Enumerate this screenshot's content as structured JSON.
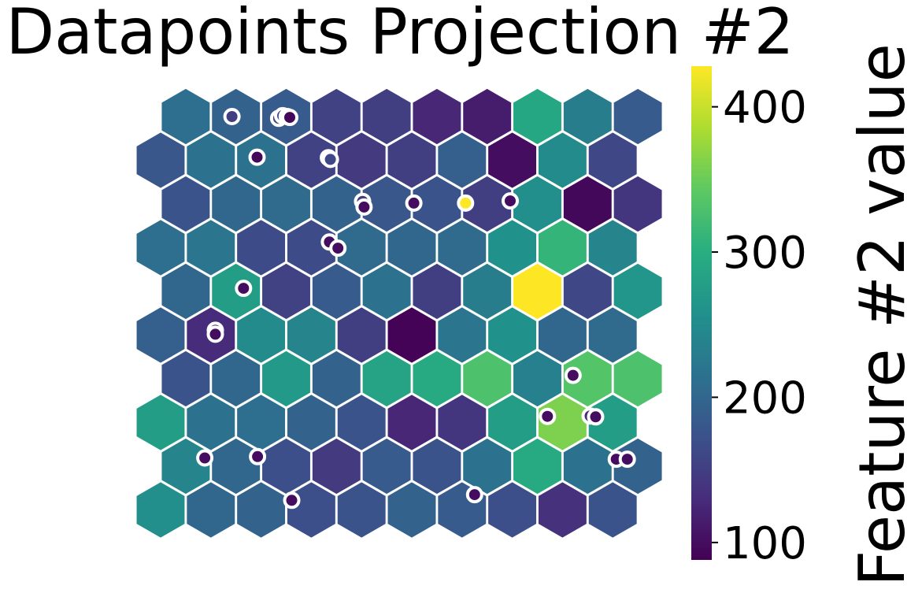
{
  "chart_data": {
    "type": "heatmap",
    "subtype": "hexagonal-som",
    "title": "Datapoints Projection #2",
    "colorbar": {
      "label": "Feature #2 value",
      "min": 88,
      "max": 428,
      "ticks": [
        100,
        200,
        300,
        400
      ],
      "colormap": "viridis"
    },
    "grid": {
      "rows": 10,
      "cols": 10,
      "odd_row_offset": "right"
    },
    "hex_values": [
      [
        210,
        195,
        185,
        155,
        150,
        125,
        115,
        290,
        230,
        185
      ],
      [
        180,
        215,
        215,
        155,
        145,
        150,
        190,
        100,
        250,
        160
      ],
      [
        175,
        200,
        205,
        195,
        180,
        175,
        150,
        255,
        95,
        140
      ],
      [
        210,
        220,
        165,
        165,
        205,
        200,
        205,
        260,
        310,
        240
      ],
      [
        200,
        275,
        155,
        185,
        215,
        150,
        230,
        428,
        160,
        265
      ],
      [
        190,
        130,
        250,
        240,
        150,
        90,
        220,
        260,
        200,
        205
      ],
      [
        175,
        200,
        270,
        195,
        285,
        295,
        330,
        235,
        335,
        330
      ],
      [
        275,
        215,
        210,
        195,
        175,
        125,
        140,
        275,
        360,
        275
      ],
      [
        240,
        200,
        170,
        145,
        185,
        175,
        215,
        295,
        215,
        195
      ],
      [
        255,
        200,
        195,
        170,
        175,
        195,
        185,
        170,
        135,
        175
      ]
    ],
    "points": [
      {
        "x": 1.42,
        "y": 0.0,
        "value": 150
      },
      {
        "x": 2.35,
        "y": 0.04,
        "value": 160
      },
      {
        "x": 2.43,
        "y": -0.02,
        "value": 170
      },
      {
        "x": 2.52,
        "y": 0.0,
        "value": 100
      },
      {
        "x": 2.57,
        "y": 0.02,
        "value": 95
      },
      {
        "x": 1.92,
        "y": 0.93,
        "value": 95
      },
      {
        "x": 3.34,
        "y": 0.94,
        "value": 100
      },
      {
        "x": 3.38,
        "y": 0.98,
        "value": 160
      },
      {
        "x": 4.02,
        "y": 1.94,
        "value": 150
      },
      {
        "x": 4.05,
        "y": 2.07,
        "value": 100
      },
      {
        "x": 5.04,
        "y": 1.98,
        "value": 100
      },
      {
        "x": 6.07,
        "y": 1.98,
        "value": 428
      },
      {
        "x": 6.96,
        "y": 1.93,
        "value": 100
      },
      {
        "x": 3.36,
        "y": 2.87,
        "value": 100
      },
      {
        "x": 3.53,
        "y": 3.01,
        "value": 100
      },
      {
        "x": 1.65,
        "y": 3.93,
        "value": 100
      },
      {
        "x": 1.09,
        "y": 4.89,
        "value": 120
      },
      {
        "x": 1.09,
        "y": 4.98,
        "value": 100
      },
      {
        "x": 8.21,
        "y": 5.92,
        "value": 100
      },
      {
        "x": 7.7,
        "y": 6.86,
        "value": 100
      },
      {
        "x": 8.55,
        "y": 6.85,
        "value": 130
      },
      {
        "x": 8.66,
        "y": 6.87,
        "value": 100
      },
      {
        "x": 0.88,
        "y": 7.81,
        "value": 100
      },
      {
        "x": 1.93,
        "y": 7.78,
        "value": 100
      },
      {
        "x": 9.07,
        "y": 7.84,
        "value": 100
      },
      {
        "x": 9.29,
        "y": 7.84,
        "value": 100
      },
      {
        "x": 2.61,
        "y": 8.78,
        "value": 100
      },
      {
        "x": 6.25,
        "y": 8.65,
        "value": 100
      }
    ]
  }
}
